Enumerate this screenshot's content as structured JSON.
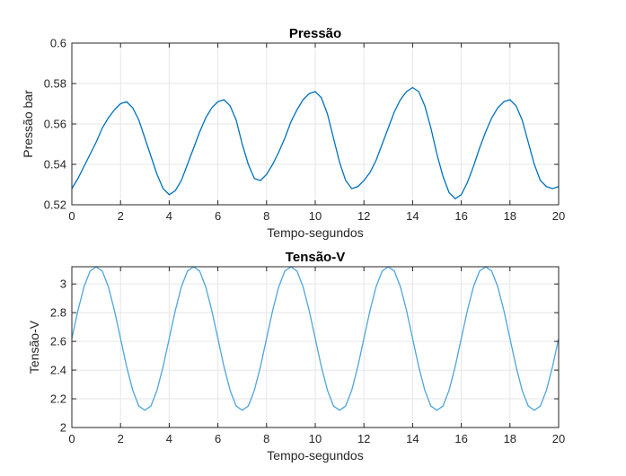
{
  "chart_data": [
    {
      "type": "line",
      "title": "Pressão",
      "xlabel": "Tempo-segundos",
      "ylabel": "Pressão bar",
      "xlim": [
        0,
        20
      ],
      "ylim": [
        0.52,
        0.6
      ],
      "xticks": [
        0,
        2,
        4,
        6,
        8,
        10,
        12,
        14,
        16,
        18,
        20
      ],
      "yticks": [
        0.52,
        0.54,
        0.56,
        0.58,
        0.6
      ],
      "xtick_labels": [
        "0",
        "2",
        "4",
        "6",
        "8",
        "10",
        "12",
        "14",
        "16",
        "18",
        "20"
      ],
      "ytick_labels": [
        "0.52",
        "0.54",
        "0.56",
        "0.58",
        "0.6"
      ],
      "grid": true,
      "color": "#0072BD",
      "series": [
        {
          "x": [
            0,
            0.25,
            0.5,
            0.75,
            1,
            1.25,
            1.5,
            1.75,
            2,
            2.25,
            2.5,
            2.75,
            3,
            3.25,
            3.5,
            3.75,
            4,
            4.25,
            4.5,
            4.75,
            5,
            5.25,
            5.5,
            5.75,
            6,
            6.25,
            6.5,
            6.75,
            7,
            7.25,
            7.5,
            7.75,
            8,
            8.25,
            8.5,
            8.75,
            9,
            9.25,
            9.5,
            9.75,
            10,
            10.25,
            10.5,
            10.75,
            11,
            11.25,
            11.5,
            11.75,
            12,
            12.25,
            12.5,
            12.75,
            13,
            13.25,
            13.5,
            13.75,
            14,
            14.25,
            14.5,
            14.75,
            15,
            15.25,
            15.5,
            15.75,
            16,
            16.25,
            16.5,
            16.75,
            17,
            17.25,
            17.5,
            17.75,
            18,
            18.25,
            18.5,
            18.75,
            19,
            19.25,
            19.5,
            19.75,
            20
          ],
          "values": [
            0.528,
            0.533,
            0.539,
            0.545,
            0.551,
            0.558,
            0.563,
            0.567,
            0.57,
            0.571,
            0.568,
            0.562,
            0.553,
            0.544,
            0.535,
            0.528,
            0.525,
            0.527,
            0.532,
            0.54,
            0.548,
            0.556,
            0.563,
            0.568,
            0.571,
            0.572,
            0.569,
            0.562,
            0.55,
            0.54,
            0.533,
            0.532,
            0.535,
            0.54,
            0.546,
            0.553,
            0.561,
            0.567,
            0.572,
            0.575,
            0.576,
            0.573,
            0.565,
            0.553,
            0.541,
            0.532,
            0.528,
            0.529,
            0.532,
            0.536,
            0.542,
            0.55,
            0.558,
            0.566,
            0.572,
            0.576,
            0.578,
            0.576,
            0.569,
            0.558,
            0.545,
            0.534,
            0.526,
            0.523,
            0.525,
            0.531,
            0.539,
            0.548,
            0.556,
            0.563,
            0.568,
            0.571,
            0.572,
            0.569,
            0.562,
            0.551,
            0.54,
            0.532,
            0.529,
            0.528,
            0.529
          ]
        }
      ]
    },
    {
      "type": "line",
      "title": "Tensão-V",
      "xlabel": "Tempo-segundos",
      "ylabel": "Tensão-V",
      "xlim": [
        0,
        20
      ],
      "ylim": [
        2,
        3.12
      ],
      "xticks": [
        0,
        2,
        4,
        6,
        8,
        10,
        12,
        14,
        16,
        18,
        20
      ],
      "yticks": [
        2,
        2.2,
        2.4,
        2.6,
        2.8,
        3
      ],
      "xtick_labels": [
        "0",
        "2",
        "4",
        "6",
        "8",
        "10",
        "12",
        "14",
        "16",
        "18",
        "20"
      ],
      "ytick_labels": [
        "2",
        "2.2",
        "2.4",
        "2.6",
        "2.8",
        "3"
      ],
      "grid": true,
      "color": "#4DA6DC",
      "series": [
        {
          "x": [
            0,
            0.25,
            0.5,
            0.75,
            1,
            1.25,
            1.5,
            1.75,
            2,
            2.25,
            2.5,
            2.75,
            3,
            3.25,
            3.5,
            3.75,
            4,
            4.25,
            4.5,
            4.75,
            5,
            5.25,
            5.5,
            5.75,
            6,
            6.25,
            6.5,
            6.75,
            7,
            7.25,
            7.5,
            7.75,
            8,
            8.25,
            8.5,
            8.75,
            9,
            9.25,
            9.5,
            9.75,
            10,
            10.25,
            10.5,
            10.75,
            11,
            11.25,
            11.5,
            11.75,
            12,
            12.25,
            12.5,
            12.75,
            13,
            13.25,
            13.5,
            13.75,
            14,
            14.25,
            14.5,
            14.75,
            15,
            15.25,
            15.5,
            15.75,
            16,
            16.25,
            16.5,
            16.75,
            17,
            17.25,
            17.5,
            17.75,
            18,
            18.25,
            18.5,
            18.75,
            19,
            19.25,
            19.5,
            19.75,
            20
          ],
          "values": [
            2.62,
            2.815,
            2.98,
            3.09,
            3.12,
            3.09,
            2.98,
            2.815,
            2.62,
            2.425,
            2.26,
            2.15,
            2.12,
            2.15,
            2.26,
            2.425,
            2.62,
            2.815,
            2.98,
            3.09,
            3.12,
            3.09,
            2.98,
            2.815,
            2.62,
            2.425,
            2.26,
            2.15,
            2.12,
            2.15,
            2.26,
            2.425,
            2.62,
            2.815,
            2.98,
            3.09,
            3.12,
            3.09,
            2.98,
            2.815,
            2.62,
            2.425,
            2.26,
            2.15,
            2.12,
            2.15,
            2.26,
            2.425,
            2.62,
            2.815,
            2.98,
            3.09,
            3.12,
            3.09,
            2.98,
            2.815,
            2.62,
            2.425,
            2.26,
            2.15,
            2.12,
            2.15,
            2.26,
            2.425,
            2.62,
            2.815,
            2.98,
            3.09,
            3.12,
            3.09,
            2.98,
            2.815,
            2.62,
            2.425,
            2.26,
            2.15,
            2.12,
            2.15,
            2.26,
            2.425,
            2.62
          ]
        }
      ]
    }
  ]
}
